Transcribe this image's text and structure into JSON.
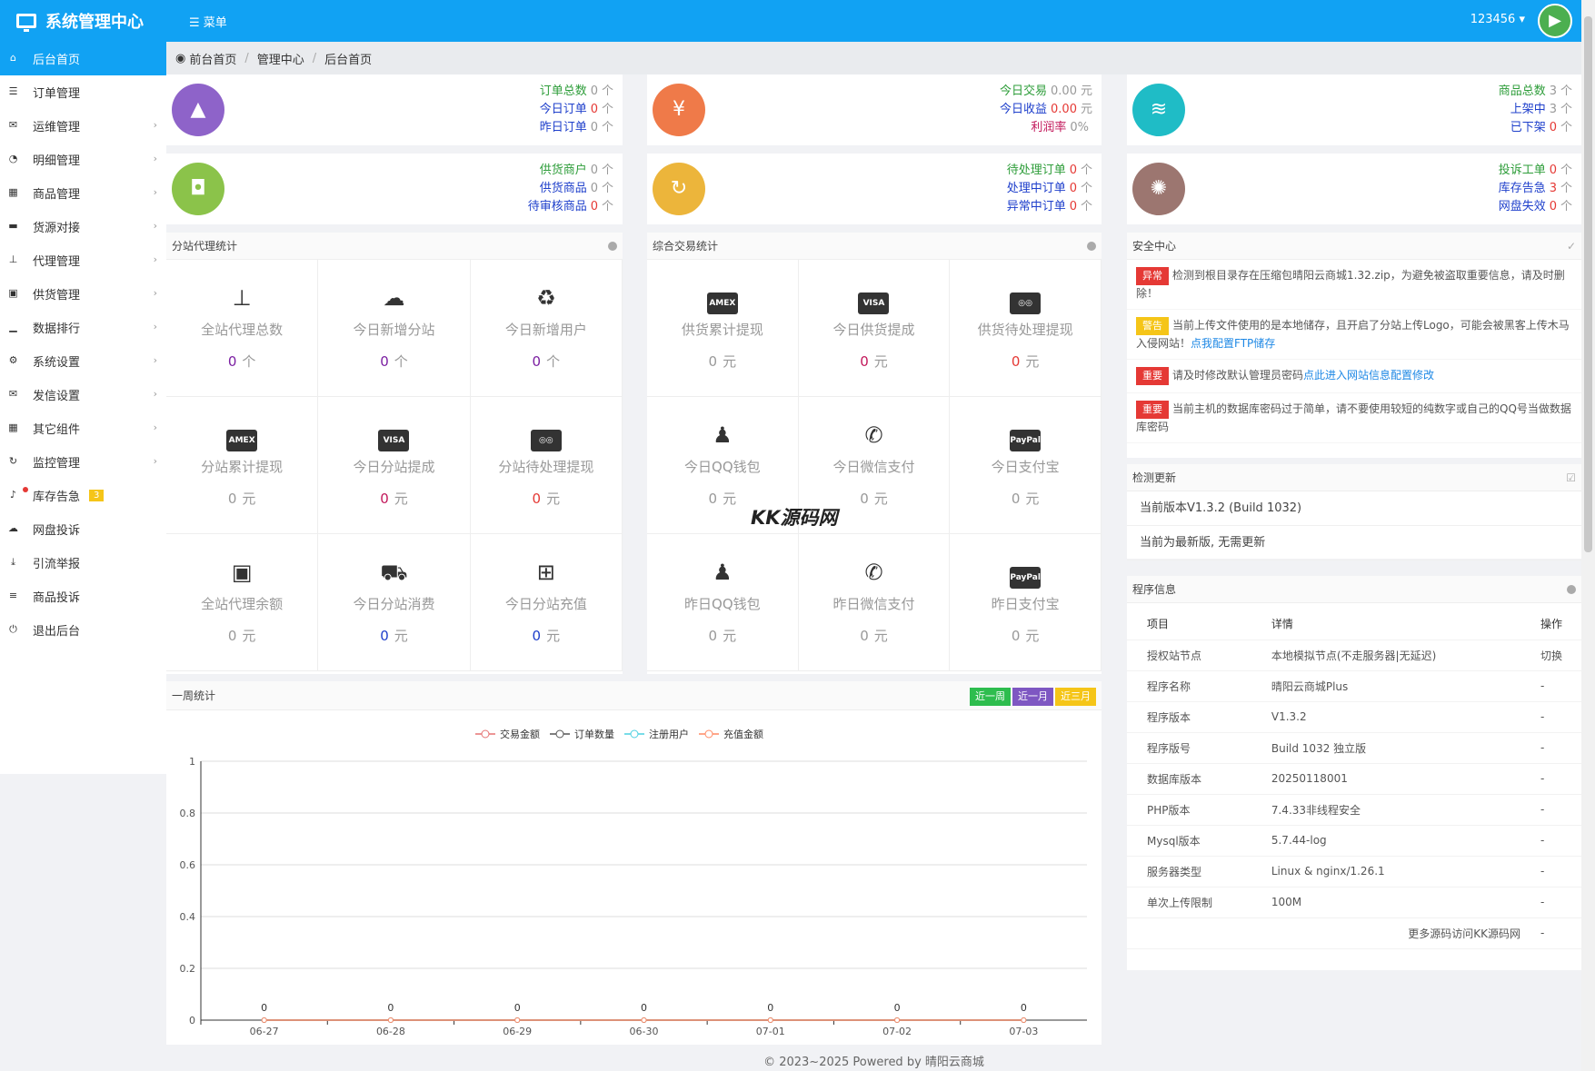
{
  "header": {
    "title": "系统管理中心",
    "menu_label": "☰ 菜单",
    "user": "123456 ▾"
  },
  "sidebar": {
    "items": [
      {
        "label": "后台首页",
        "icon": "home-icon",
        "glyph": "⌂",
        "active": true,
        "arrow": false
      },
      {
        "label": "订单管理",
        "icon": "list-icon",
        "glyph": "☰",
        "arrow": false
      },
      {
        "label": "运维管理",
        "icon": "comments-icon",
        "glyph": "✉",
        "arrow": true
      },
      {
        "label": "明细管理",
        "icon": "pie-chart-icon",
        "glyph": "◔",
        "arrow": true
      },
      {
        "label": "商品管理",
        "icon": "grid-icon",
        "glyph": "▦",
        "arrow": true
      },
      {
        "label": "货源对接",
        "icon": "briefcase-icon",
        "glyph": "▬",
        "arrow": true
      },
      {
        "label": "代理管理",
        "icon": "sitemap-icon",
        "glyph": "⊥",
        "arrow": true
      },
      {
        "label": "供货管理",
        "icon": "bag-icon",
        "glyph": "▣",
        "arrow": true
      },
      {
        "label": "数据排行",
        "icon": "signal-icon",
        "glyph": "▁",
        "arrow": true
      },
      {
        "label": "系统设置",
        "icon": "cogs-icon",
        "glyph": "⚙",
        "arrow": true
      },
      {
        "label": "发信设置",
        "icon": "envelope-icon",
        "glyph": "✉",
        "arrow": true
      },
      {
        "label": "其它组件",
        "icon": "calendar-icon",
        "glyph": "▦",
        "arrow": true
      },
      {
        "label": "监控管理",
        "icon": "refresh-icon",
        "glyph": "↻",
        "arrow": true
      },
      {
        "label": "库存告急",
        "icon": "bell-icon",
        "glyph": "♪",
        "arrow": false,
        "badge": "3"
      },
      {
        "label": "网盘投诉",
        "icon": "cloud-icon",
        "glyph": "☁",
        "arrow": false
      },
      {
        "label": "引流举报",
        "icon": "download-icon",
        "glyph": "⤓",
        "arrow": false
      },
      {
        "label": "商品投诉",
        "icon": "align-icon",
        "glyph": "≡",
        "arrow": false
      },
      {
        "label": "退出后台",
        "icon": "power-icon",
        "glyph": "⏻",
        "arrow": false
      }
    ]
  },
  "breadcrumb": [
    "前台首页",
    "管理中心",
    "后台首页"
  ],
  "stats": [
    {
      "icon": "area-chart-icon",
      "glyph": "▲",
      "color": "#8e63c9",
      "lines": [
        {
          "label": "订单总数",
          "val": "0",
          "unit": "个",
          "lc": "#2e9d3a",
          "vc": "#999"
        },
        {
          "label": "今日订单",
          "val": "0",
          "unit": "个",
          "lc": "#1e3fcb",
          "vc": "#e53935"
        },
        {
          "label": "昨日订单",
          "val": "0",
          "unit": "个",
          "lc": "#1e3fcb",
          "vc": "#999"
        }
      ]
    },
    {
      "icon": "yen-icon",
      "glyph": "¥",
      "color": "#ef7a49",
      "lines": [
        {
          "label": "今日交易",
          "val": "0.00",
          "unit": "元",
          "lc": "#2e9d3a",
          "vc": "#999"
        },
        {
          "label": "今日收益",
          "val": "0.00",
          "unit": "元",
          "lc": "#1e3fcb",
          "vc": "#e53935"
        },
        {
          "label": "利润率",
          "val": "0%",
          "unit": "",
          "lc": "#c2185b",
          "vc": "#999"
        }
      ]
    },
    {
      "icon": "database-icon",
      "glyph": "≋",
      "color": "#1fbcc6",
      "lines": [
        {
          "label": "商品总数",
          "val": "3",
          "unit": "个",
          "lc": "#2e9d3a",
          "vc": "#999"
        },
        {
          "label": "上架中",
          "val": "3",
          "unit": "个",
          "lc": "#1e3fcb",
          "vc": "#999"
        },
        {
          "label": "已下架",
          "val": "0",
          "unit": "个",
          "lc": "#1e3fcb",
          "vc": "#e53935"
        }
      ]
    },
    {
      "icon": "shopping-bag-icon",
      "glyph": "◘",
      "color": "#8bc34a",
      "lines": [
        {
          "label": "供货商户",
          "val": "0",
          "unit": "个",
          "lc": "#2e9d3a",
          "vc": "#999"
        },
        {
          "label": "供货商品",
          "val": "0",
          "unit": "个",
          "lc": "#1e3fcb",
          "vc": "#999"
        },
        {
          "label": "待审核商品",
          "val": "0",
          "unit": "个",
          "lc": "#1e3fcb",
          "vc": "#e53935"
        }
      ]
    },
    {
      "icon": "refresh-icon",
      "glyph": "↻",
      "color": "#ecb53b",
      "lines": [
        {
          "label": "待处理订单",
          "val": "0",
          "unit": "个",
          "lc": "#2e9d3a",
          "vc": "#e53935"
        },
        {
          "label": "处理中订单",
          "val": "0",
          "unit": "个",
          "lc": "#1e3fcb",
          "vc": "#e53935"
        },
        {
          "label": "异常中订单",
          "val": "0",
          "unit": "个",
          "lc": "#1e3fcb",
          "vc": "#e53935"
        }
      ]
    },
    {
      "icon": "spinner-icon",
      "glyph": "✺",
      "color": "#9c7670",
      "lines": [
        {
          "label": "投诉工单",
          "val": "0",
          "unit": "个",
          "lc": "#2e9d3a",
          "vc": "#e53935"
        },
        {
          "label": "库存告急",
          "val": "3",
          "unit": "个",
          "lc": "#1e3fcb",
          "vc": "#e53935"
        },
        {
          "label": "网盘失效",
          "val": "0",
          "unit": "个",
          "lc": "#1e3fcb",
          "vc": "#e53935"
        }
      ]
    }
  ],
  "agent_panel": {
    "title": "分站代理统计",
    "cells": [
      {
        "icon": "sitemap-icon",
        "glyph": "⊥",
        "label": "全站代理总数",
        "val": "0",
        "unit": "个",
        "vc": "#7b1fa2"
      },
      {
        "icon": "cloud-icon",
        "glyph": "☁",
        "label": "今日新增分站",
        "val": "0",
        "unit": "个",
        "vc": "#7b1fa2"
      },
      {
        "icon": "recycle-icon",
        "glyph": "♻",
        "label": "今日新增用户",
        "val": "0",
        "unit": "个",
        "vc": "#7b1fa2"
      },
      {
        "icon": "amex-card-icon",
        "card": "AMEX",
        "label": "分站累计提现",
        "val": "0",
        "unit": "元",
        "vc": "#999"
      },
      {
        "icon": "visa-card-icon",
        "card": "VISA",
        "label": "今日分站提成",
        "val": "0",
        "unit": "元",
        "vc": "#c2185b"
      },
      {
        "icon": "mastercard-icon",
        "card": "◎◎",
        "label": "分站待处理提现",
        "val": "0",
        "unit": "元",
        "vc": "#e53935"
      },
      {
        "icon": "briefcase-icon",
        "glyph": "▣",
        "label": "全站代理余额",
        "val": "0",
        "unit": "元",
        "vc": "#999"
      },
      {
        "icon": "cart-icon",
        "glyph": "⛟",
        "label": "今日分站消费",
        "val": "0",
        "unit": "元",
        "vc": "#1e3fcb"
      },
      {
        "icon": "plus-square-icon",
        "glyph": "⊞",
        "label": "今日分站充值",
        "val": "0",
        "unit": "元",
        "vc": "#1e3fcb"
      }
    ]
  },
  "trade_panel": {
    "title": "综合交易统计",
    "cells": [
      {
        "icon": "amex-card-icon",
        "card": "AMEX",
        "label": "供货累计提现",
        "val": "0",
        "unit": "元",
        "vc": "#999"
      },
      {
        "icon": "visa-card-icon",
        "card": "VISA",
        "label": "今日供货提成",
        "val": "0",
        "unit": "元",
        "vc": "#c2185b"
      },
      {
        "icon": "mastercard-icon",
        "card": "◎◎",
        "label": "供货待处理提现",
        "val": "0",
        "unit": "元",
        "vc": "#e53935"
      },
      {
        "icon": "qq-icon",
        "glyph": "♟",
        "label": "今日QQ钱包",
        "val": "0",
        "unit": "元",
        "vc": "#999"
      },
      {
        "icon": "wechat-icon",
        "glyph": "✆",
        "label": "今日微信支付",
        "val": "0",
        "unit": "元",
        "vc": "#999"
      },
      {
        "icon": "paypal-icon",
        "card": "PayPal",
        "label": "今日支付宝",
        "val": "0",
        "unit": "元",
        "vc": "#999"
      },
      {
        "icon": "qq-icon",
        "glyph": "♟",
        "label": "昨日QQ钱包",
        "val": "0",
        "unit": "元",
        "vc": "#999"
      },
      {
        "icon": "wechat-icon",
        "glyph": "✆",
        "label": "昨日微信支付",
        "val": "0",
        "unit": "元",
        "vc": "#999"
      },
      {
        "icon": "paypal-icon",
        "card": "PayPal",
        "label": "昨日支付宝",
        "val": "0",
        "unit": "元",
        "vc": "#999"
      }
    ]
  },
  "security": {
    "title": "安全中心",
    "rows": [
      {
        "tag": "异常",
        "tc": "red",
        "text": "检测到根目录存在压缩包晴阳云商城1.32.zip，为避免被盗取重要信息，请及时删除！",
        "link": ""
      },
      {
        "tag": "警告",
        "tc": "yel",
        "text": "当前上传文件使用的是本地储存，且开启了分站上传Logo，可能会被黑客上传木马入侵网站！",
        "link": "点我配置FTP储存"
      },
      {
        "tag": "重要",
        "tc": "red",
        "text": "请及时修改默认管理员密码",
        "link": "点此进入网站信息配置修改"
      },
      {
        "tag": "重要",
        "tc": "red",
        "text": "当前主机的数据库密码过于简单，请不要使用较短的纯数字或自己的QQ号当做数据库密码",
        "link": ""
      }
    ]
  },
  "update": {
    "title": "检测更新",
    "version": "当前版本V1.3.2 (Build 1032)",
    "status": "当前为最新版, 无需更新"
  },
  "program": {
    "title": "程序信息",
    "headers": [
      "项目",
      "详情",
      "操作"
    ],
    "rows": [
      [
        "授权站节点",
        "本地模拟节点(不走服务器|无延迟)",
        "切换"
      ],
      [
        "程序名称",
        "晴阳云商城Plus",
        "-"
      ],
      [
        "程序版本",
        "V1.3.2",
        "-"
      ],
      [
        "程序版号",
        "Build 1032 独立版",
        "-"
      ],
      [
        "数据库版本",
        "20250118001",
        "-"
      ],
      [
        "PHP版本",
        "7.4.33非线程安全",
        "-"
      ],
      [
        "Mysql版本",
        "5.7.44-log",
        "-"
      ],
      [
        "服务器类型",
        "Linux & nginx/1.26.1",
        "-"
      ],
      [
        "单次上传限制",
        "100M",
        "-"
      ],
      [
        "",
        "更多源码访问KK源码网",
        "-"
      ]
    ]
  },
  "weekly": {
    "title": "一周统计",
    "buttons": [
      {
        "label": "近一周",
        "color": "#2ebd4e"
      },
      {
        "label": "近一月",
        "color": "#7e57c2"
      },
      {
        "label": "近三月",
        "color": "#f5c518"
      }
    ]
  },
  "chart_data": {
    "type": "line",
    "categories": [
      "06-27",
      "06-28",
      "06-29",
      "06-30",
      "07-01",
      "07-02",
      "07-03"
    ],
    "series": [
      {
        "name": "交易金额",
        "color": "#e57373",
        "values": [
          0,
          0,
          0,
          0,
          0,
          0,
          0
        ]
      },
      {
        "name": "订单数量",
        "color": "#555555",
        "values": [
          0,
          0,
          0,
          0,
          0,
          0,
          0
        ]
      },
      {
        "name": "注册用户",
        "color": "#4dd0e1",
        "values": [
          0,
          0,
          0,
          0,
          0,
          0,
          0
        ]
      },
      {
        "name": "充值金额",
        "color": "#ff8a65",
        "values": [
          0,
          0,
          0,
          0,
          0,
          0,
          0
        ]
      }
    ],
    "ylim": [
      0,
      1
    ],
    "yticks": [
      "0",
      "0.2",
      "0.4",
      "0.6",
      "0.8",
      "1"
    ],
    "data_labels": [
      "0",
      "0",
      "0",
      "0",
      "0",
      "0",
      "0"
    ],
    "grid": true,
    "legend": "top-center"
  },
  "watermark": "KK源码网",
  "footer": "© 2023~2025 Powered by 晴阳云商城"
}
